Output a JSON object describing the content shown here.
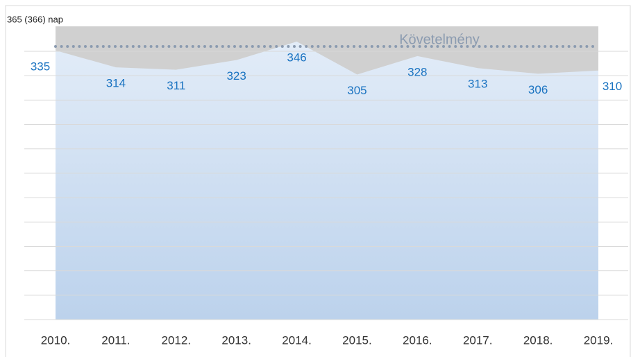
{
  "chart_data": {
    "type": "area",
    "categories": [
      "2010.",
      "2011.",
      "2012.",
      "2013.",
      "2014.",
      "2015.",
      "2016.",
      "2017.",
      "2018.",
      "2019."
    ],
    "values": [
      335,
      314,
      311,
      323,
      346,
      305,
      328,
      313,
      306,
      310
    ],
    "color": "#c9dbf0",
    "label_color": "#1a73c1",
    "band_color": "#d0d0d0",
    "ylim": [
      0,
      365
    ],
    "yticks": [
      {
        "value": 365,
        "label": "365 (366) nap"
      }
    ],
    "requirement": {
      "label": "Követelmény",
      "value": 340,
      "color": "#8b9bb0"
    }
  }
}
